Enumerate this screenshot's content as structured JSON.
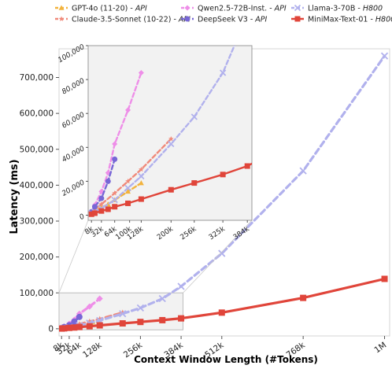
{
  "chart_data": {
    "type": "line",
    "xlabel": "Context Window Length (#Tokens)",
    "ylabel": "Latency (ms)",
    "x_ticks": [
      {
        "v": 8,
        "label": "8k"
      },
      {
        "v": 32,
        "label": "32k"
      },
      {
        "v": 64,
        "label": "64k"
      },
      {
        "v": 128,
        "label": "128k"
      },
      {
        "v": 256,
        "label": "256k"
      },
      {
        "v": 384,
        "label": "384k"
      },
      {
        "v": 512,
        "label": "512k"
      },
      {
        "v": 768,
        "label": "768k"
      },
      {
        "v": 1024,
        "label": "1M"
      }
    ],
    "y_ticks": [
      {
        "v": 0,
        "label": "0"
      },
      {
        "v": 100000,
        "label": "100,000"
      },
      {
        "v": 200000,
        "label": "200,000"
      },
      {
        "v": 300000,
        "label": "300,000"
      },
      {
        "v": 400000,
        "label": "400,000"
      },
      {
        "v": 500000,
        "label": "500,000"
      },
      {
        "v": 600000,
        "label": "600,000"
      },
      {
        "v": 700000,
        "label": "700,000"
      }
    ],
    "xlim": [
      0,
      1040
    ],
    "ylim": [
      -20000,
      780000
    ],
    "legend_position": "top",
    "series": [
      {
        "name": "GPT-4o (11-20)",
        "tag": "API",
        "color": "#f2b33d",
        "marker": "triangle",
        "dashed": true,
        "x": [
          8,
          16,
          32,
          48,
          64,
          96,
          128
        ],
        "y": [
          1500,
          2500,
          4500,
          6500,
          9000,
          14000,
          19000
        ]
      },
      {
        "name": "Claude-3.5-Sonnet (10-22)",
        "tag": "API",
        "color": "#f0897a",
        "marker": "star",
        "dashed": true,
        "x": [
          8,
          16,
          32,
          64,
          96,
          128,
          200
        ],
        "y": [
          2000,
          3500,
          6500,
          13000,
          20000,
          27000,
          45000
        ]
      },
      {
        "name": "Qwen2.5-72B-Inst.",
        "tag": "API",
        "color": "#ee8ee8",
        "marker": "diamond",
        "dashed": true,
        "x": [
          8,
          16,
          32,
          48,
          64,
          96,
          128
        ],
        "y": [
          2000,
          6000,
          14000,
          25000,
          42000,
          62000,
          84000
        ]
      },
      {
        "name": "DeepSeek V3",
        "tag": "API",
        "color": "#7766d6",
        "marker": "circle",
        "dashed": true,
        "x": [
          8,
          16,
          32,
          48,
          64
        ],
        "y": [
          2000,
          5000,
          10000,
          20000,
          33000
        ]
      },
      {
        "name": "Llama-3-70B",
        "tag": "H800",
        "color": "#b1b1ed",
        "marker": "x",
        "dashed": true,
        "x": [
          8,
          16,
          32,
          64,
          96,
          128,
          200,
          256,
          325,
          384,
          512,
          768,
          1024
        ],
        "y": [
          1000,
          2000,
          4000,
          9000,
          16000,
          23000,
          42000,
          58000,
          84000,
          118000,
          210000,
          440000,
          760000
        ]
      },
      {
        "name": "MiniMax-Text-01",
        "tag": "H800",
        "color": "#e0453a",
        "marker": "square",
        "dashed": false,
        "x": [
          8,
          16,
          32,
          48,
          64,
          96,
          128,
          200,
          256,
          325,
          384,
          512,
          768,
          1024
        ],
        "y": [
          600,
          1200,
          2500,
          3500,
          5000,
          7000,
          9500,
          15000,
          19000,
          24000,
          29000,
          45000,
          86000,
          139000
        ]
      }
    ],
    "inset": {
      "xlim": [
        0,
        395
      ],
      "ylim": [
        -3000,
        100000
      ],
      "x_ticks": [
        {
          "v": 8,
          "label": "8k"
        },
        {
          "v": 32,
          "label": "32k"
        },
        {
          "v": 64,
          "label": "64k"
        },
        {
          "v": 100,
          "label": "100k"
        },
        {
          "v": 128,
          "label": "128k"
        },
        {
          "v": 200,
          "label": "200k"
        },
        {
          "v": 256,
          "label": "256k"
        },
        {
          "v": 325,
          "label": "325k"
        },
        {
          "v": 384,
          "label": "384k"
        }
      ],
      "y_ticks": [
        {
          "v": 0,
          "label": "0"
        },
        {
          "v": 20000,
          "label": "20,000"
        },
        {
          "v": 40000,
          "label": "40,000"
        },
        {
          "v": 60000,
          "label": "60,000"
        },
        {
          "v": 80000,
          "label": "80,000"
        },
        {
          "v": 100000,
          "label": "100,000"
        }
      ],
      "zoom_region": {
        "x": [
          0,
          390
        ],
        "y": [
          -3000,
          100000
        ]
      }
    }
  }
}
